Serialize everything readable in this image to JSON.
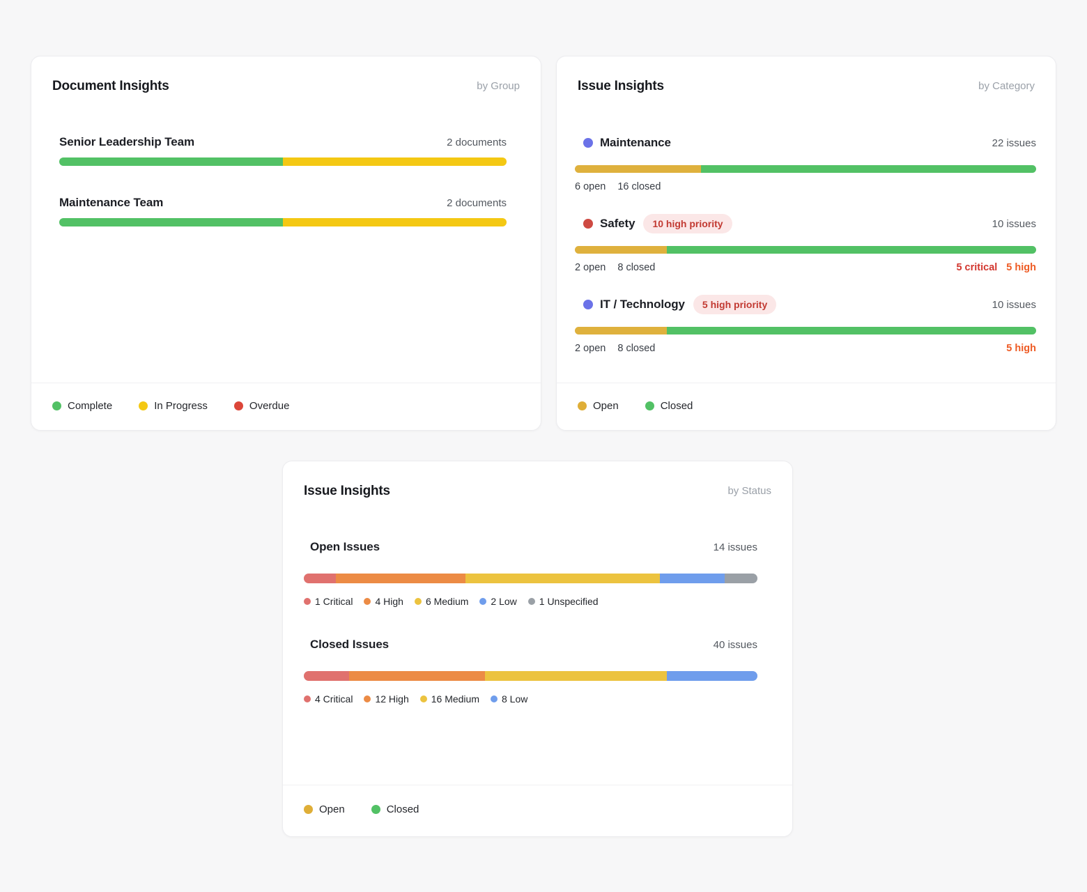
{
  "page": {
    "background": "#f7f7f8"
  },
  "cards": {
    "documents": {
      "title": "Document Insights",
      "byline": "by Group",
      "rows": [
        {
          "label": "Senior Leadership Team",
          "count": "2",
          "unit": "documents",
          "segments": [
            {
              "name": "complete",
              "color": "#52c165",
              "pct": 50
            },
            {
              "name": "in-progress",
              "color": "#f4c813",
              "pct": 50
            }
          ]
        },
        {
          "label": "Maintenance Team",
          "count": "2",
          "unit": "documents",
          "segments": [
            {
              "name": "complete",
              "color": "#52c165",
              "pct": 50
            },
            {
              "name": "in-progress",
              "color": "#f4c813",
              "pct": 50
            }
          ]
        }
      ],
      "legend": [
        {
          "label": "Complete",
          "color": "#52c165"
        },
        {
          "label": "In Progress",
          "color": "#f4c813"
        },
        {
          "label": "Overdue",
          "color": "#dc4639"
        }
      ]
    },
    "issues_by_category": {
      "title": "Issue Insights",
      "byline": "by Category",
      "rows": [
        {
          "dot": "#6b72e8",
          "label": "Maintenance",
          "badge": null,
          "count": "22",
          "unit": "issues",
          "segments": [
            {
              "name": "open",
              "color": "#dfb13d",
              "pct": 27.3
            },
            {
              "name": "closed",
              "color": "#52c165",
              "pct": 72.7
            }
          ],
          "stats": [
            "6 open",
            "16 closed"
          ],
          "priority": []
        },
        {
          "dot": "#ce4a42",
          "label": "Safety",
          "badge": "10 high priority",
          "count": "10",
          "unit": "issues",
          "segments": [
            {
              "name": "open",
              "color": "#dfb13d",
              "pct": 20
            },
            {
              "name": "closed",
              "color": "#52c165",
              "pct": 80
            }
          ],
          "stats": [
            "2 open",
            "8 closed"
          ],
          "priority": [
            {
              "text": "5 critical",
              "color": "#d2362e"
            },
            {
              "text": "5 high",
              "color": "#ee5a23"
            }
          ]
        },
        {
          "dot": "#6b72e8",
          "label": "IT / Technology",
          "badge": "5 high priority",
          "count": "10",
          "unit": "issues",
          "segments": [
            {
              "name": "open",
              "color": "#dfb13d",
              "pct": 20
            },
            {
              "name": "closed",
              "color": "#52c165",
              "pct": 80
            }
          ],
          "stats": [
            "2 open",
            "8 closed"
          ],
          "priority": [
            {
              "text": "5 high",
              "color": "#ee5a23"
            }
          ]
        }
      ],
      "legend": [
        {
          "label": "Open",
          "color": "#dfae37"
        },
        {
          "label": "Closed",
          "color": "#52c165"
        }
      ]
    },
    "issues_by_status": {
      "title": "Issue Insights",
      "byline": "by Status",
      "rows": [
        {
          "label": "Open Issues",
          "count": "14",
          "unit": "issues",
          "segments": [
            {
              "name": "critical",
              "color": "#e0716e",
              "pct": 7.14
            },
            {
              "name": "high",
              "color": "#ec8b45",
              "pct": 28.57
            },
            {
              "name": "medium",
              "color": "#ecc33f",
              "pct": 42.86
            },
            {
              "name": "low",
              "color": "#6f9dec",
              "pct": 14.29
            },
            {
              "name": "unspecified",
              "color": "#9aa0a6",
              "pct": 7.14
            }
          ],
          "breakdown": [
            {
              "label": "1 Critical",
              "color": "#e0716e"
            },
            {
              "label": "4 High",
              "color": "#ec8b45"
            },
            {
              "label": "6 Medium",
              "color": "#ecc33f"
            },
            {
              "label": "2 Low",
              "color": "#6f9dec"
            },
            {
              "label": "1 Unspecified",
              "color": "#9aa0a6"
            }
          ]
        },
        {
          "label": "Closed Issues",
          "count": "40",
          "unit": "issues",
          "segments": [
            {
              "name": "critical",
              "color": "#e0716e",
              "pct": 10
            },
            {
              "name": "high",
              "color": "#ec8b45",
              "pct": 30
            },
            {
              "name": "medium",
              "color": "#ecc33f",
              "pct": 40
            },
            {
              "name": "low",
              "color": "#6f9dec",
              "pct": 20
            }
          ],
          "breakdown": [
            {
              "label": "4 Critical",
              "color": "#e0716e"
            },
            {
              "label": "12 High",
              "color": "#ec8b45"
            },
            {
              "label": "16 Medium",
              "color": "#ecc33f"
            },
            {
              "label": "8 Low",
              "color": "#6f9dec"
            }
          ]
        }
      ],
      "legend": [
        {
          "label": "Open",
          "color": "#dfae37"
        },
        {
          "label": "Closed",
          "color": "#52c165"
        }
      ]
    }
  },
  "chart_data": [
    {
      "type": "bar",
      "title": "Document Insights by Group",
      "categories": [
        "Senior Leadership Team",
        "Maintenance Team"
      ],
      "series": [
        {
          "name": "Complete",
          "values": [
            1,
            1
          ]
        },
        {
          "name": "In Progress",
          "values": [
            1,
            1
          ]
        },
        {
          "name": "Overdue",
          "values": [
            0,
            0
          ]
        }
      ],
      "totals": [
        2,
        2
      ],
      "total_unit": "documents",
      "legend_position": "bottom"
    },
    {
      "type": "bar",
      "title": "Issue Insights by Category",
      "categories": [
        "Maintenance",
        "Safety",
        "IT / Technology"
      ],
      "series": [
        {
          "name": "Open",
          "values": [
            6,
            2,
            2
          ]
        },
        {
          "name": "Closed",
          "values": [
            16,
            8,
            8
          ]
        }
      ],
      "totals": [
        22,
        10,
        10
      ],
      "total_unit": "issues",
      "annotations": [
        "",
        "10 high priority; 5 critical, 5 high",
        "5 high priority; 5 high"
      ],
      "legend_position": "bottom"
    },
    {
      "type": "bar",
      "title": "Issue Insights by Status",
      "categories": [
        "Open Issues",
        "Closed Issues"
      ],
      "series": [
        {
          "name": "Critical",
          "values": [
            1,
            4
          ]
        },
        {
          "name": "High",
          "values": [
            4,
            12
          ]
        },
        {
          "name": "Medium",
          "values": [
            6,
            16
          ]
        },
        {
          "name": "Low",
          "values": [
            2,
            8
          ]
        },
        {
          "name": "Unspecified",
          "values": [
            1,
            0
          ]
        }
      ],
      "totals": [
        14,
        40
      ],
      "total_unit": "issues",
      "legend_position": "bottom"
    }
  ]
}
